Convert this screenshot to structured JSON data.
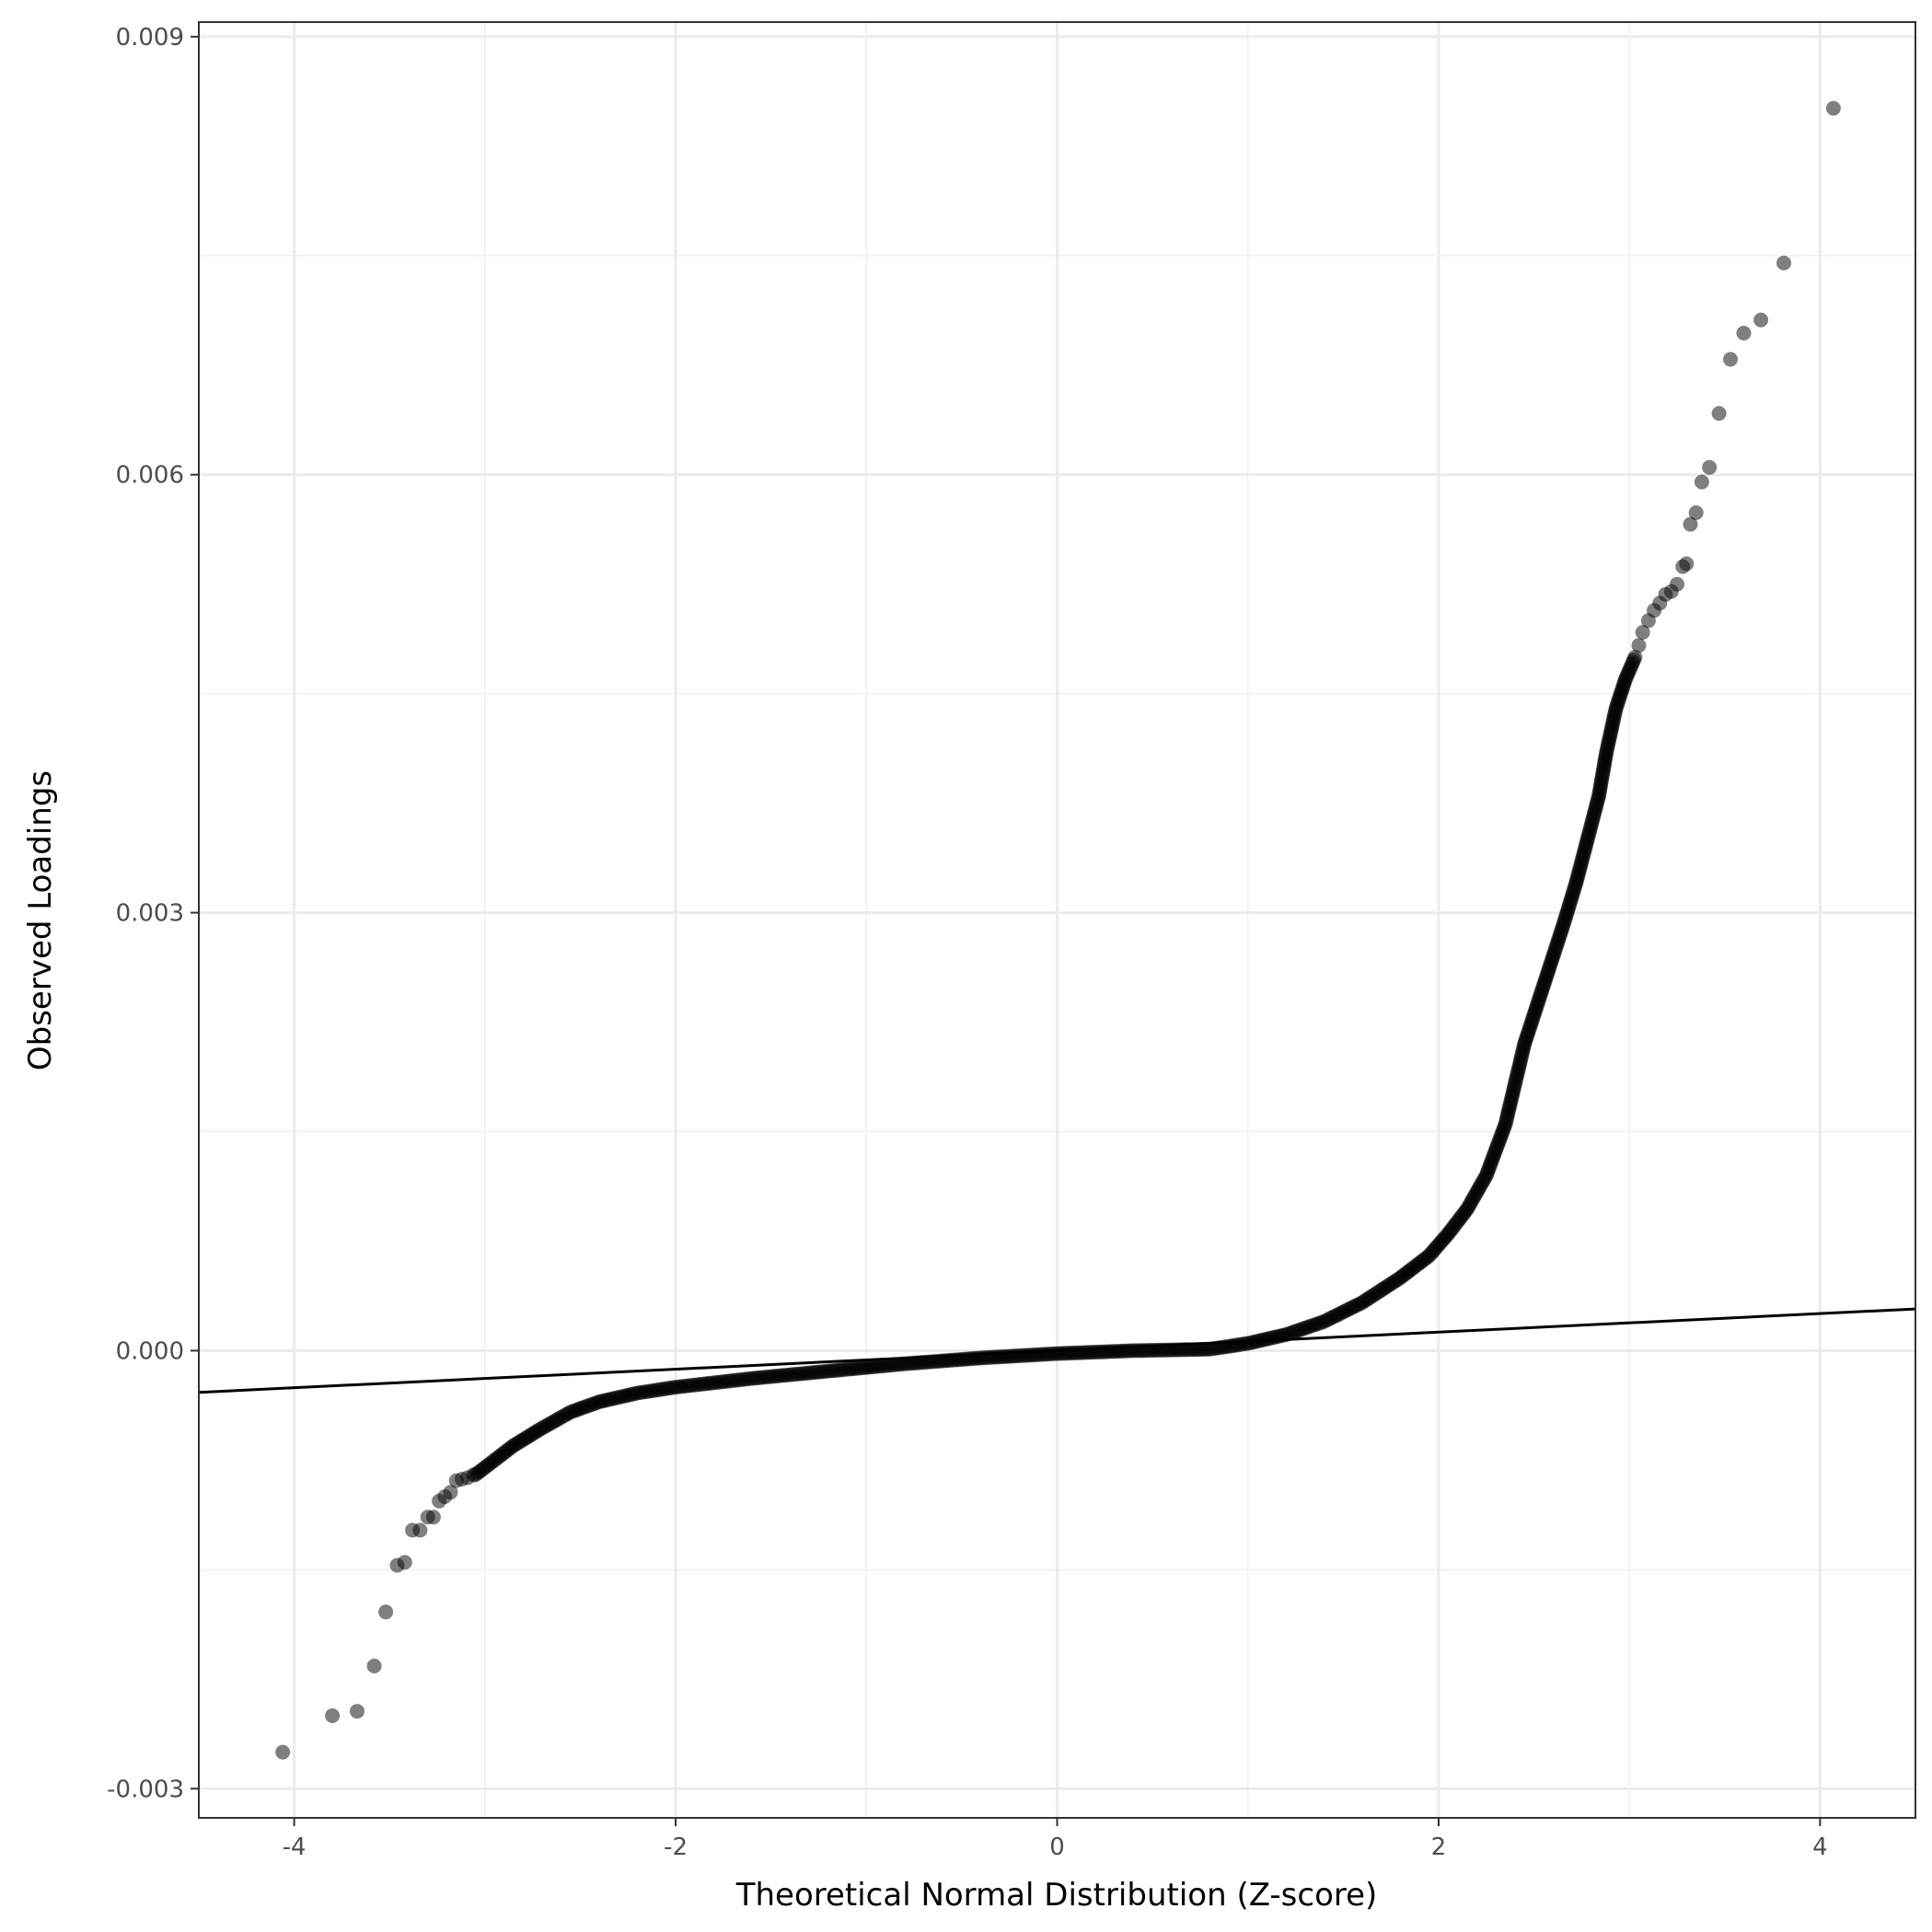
{
  "chart_data": {
    "type": "scatter",
    "title": "",
    "xlabel": "Theoretical Normal Distribution (Z-score)",
    "ylabel": "Observed Loadings",
    "xlim": [
      -4.5,
      4.5
    ],
    "ylim": [
      -0.0032,
      0.0091
    ],
    "xticks": [
      -4,
      -2,
      0,
      2,
      4
    ],
    "xtick_labels": [
      "-4",
      "-2",
      "0",
      "2",
      "4"
    ],
    "yticks": [
      -0.003,
      0.0,
      0.003,
      0.006,
      0.009
    ],
    "ytick_labels": [
      "-0.003",
      "0.000",
      "0.003",
      "0.006",
      "0.009"
    ],
    "grid": true,
    "point_color": "#000000",
    "point_opacity": 0.5,
    "line_color": "#000000",
    "reference_line": {
      "intercept": 0.0,
      "slope": 6.35e-05
    },
    "outlier_points": [
      [
        -4.06,
        -0.00275
      ],
      [
        -3.8,
        -0.0025
      ],
      [
        -3.67,
        -0.00247
      ],
      [
        -3.58,
        -0.00216
      ],
      [
        -3.52,
        -0.00179
      ],
      [
        -3.46,
        -0.00147
      ],
      [
        -3.42,
        -0.00145
      ],
      [
        -3.38,
        -0.00123
      ],
      [
        -3.34,
        -0.00123
      ],
      [
        -3.3,
        -0.00114
      ],
      [
        -3.27,
        -0.00114
      ],
      [
        -3.24,
        -0.00103
      ],
      [
        -3.21,
        -0.001
      ],
      [
        -3.18,
        -0.00097
      ],
      [
        -3.15,
        -0.00089
      ],
      [
        -3.12,
        -0.00088
      ],
      [
        -3.09,
        -0.00087
      ],
      [
        -3.06,
        -0.00085
      ],
      [
        3.05,
        0.00483
      ],
      [
        3.07,
        0.00492
      ],
      [
        3.1,
        0.005
      ],
      [
        3.13,
        0.00507
      ],
      [
        3.16,
        0.00512
      ],
      [
        3.19,
        0.00518
      ],
      [
        3.22,
        0.0052
      ],
      [
        3.25,
        0.00525
      ],
      [
        3.28,
        0.00537
      ],
      [
        3.3,
        0.00539
      ],
      [
        3.32,
        0.00566
      ],
      [
        3.35,
        0.00574
      ],
      [
        3.38,
        0.00595
      ],
      [
        3.42,
        0.00605
      ],
      [
        3.47,
        0.00642
      ],
      [
        3.53,
        0.00679
      ],
      [
        3.6,
        0.00697
      ],
      [
        3.69,
        0.00706
      ],
      [
        3.81,
        0.00745
      ],
      [
        4.07,
        0.00851
      ]
    ],
    "curve_knots": [
      [
        -3.05,
        -0.00085
      ],
      [
        -2.95,
        -0.00075
      ],
      [
        -2.85,
        -0.00065
      ],
      [
        -2.7,
        -0.00053
      ],
      [
        -2.55,
        -0.00042
      ],
      [
        -2.4,
        -0.00035
      ],
      [
        -2.2,
        -0.00029
      ],
      [
        -2.0,
        -0.00025
      ],
      [
        -1.6,
        -0.00019
      ],
      [
        -1.2,
        -0.00014
      ],
      [
        -0.8,
        -9e-05
      ],
      [
        -0.4,
        -5e-05
      ],
      [
        0.0,
        -2e-05
      ],
      [
        0.4,
        0.0
      ],
      [
        0.8,
        1e-05
      ],
      [
        1.0,
        5e-05
      ],
      [
        1.2,
        0.00011
      ],
      [
        1.4,
        0.0002
      ],
      [
        1.6,
        0.00033
      ],
      [
        1.8,
        0.0005
      ],
      [
        1.95,
        0.00065
      ],
      [
        2.05,
        0.0008
      ],
      [
        2.15,
        0.00097
      ],
      [
        2.25,
        0.0012
      ],
      [
        2.35,
        0.00155
      ],
      [
        2.45,
        0.0021
      ],
      [
        2.55,
        0.0025
      ],
      [
        2.65,
        0.0029
      ],
      [
        2.72,
        0.0032
      ],
      [
        2.78,
        0.0035
      ],
      [
        2.84,
        0.0038
      ],
      [
        2.88,
        0.0041
      ],
      [
        2.93,
        0.0044
      ],
      [
        2.98,
        0.0046
      ],
      [
        3.03,
        0.00475
      ]
    ]
  }
}
